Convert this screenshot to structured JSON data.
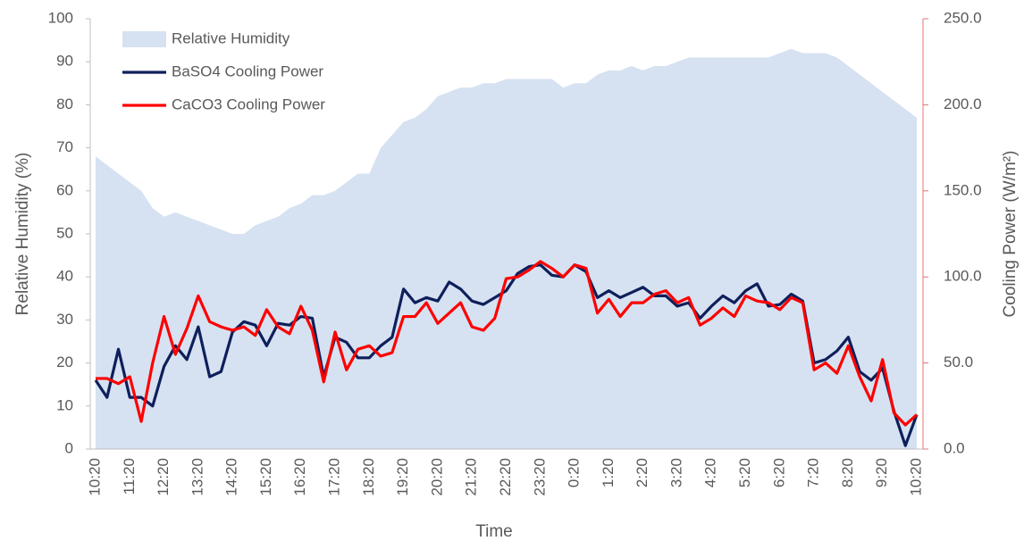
{
  "chart_data": {
    "type": "line",
    "x_label": "Time",
    "y_label": "Relative Humidity (%)",
    "y2_label": "Cooling Power (W/m²)",
    "categories": [
      "10:20",
      null,
      null,
      "11:20",
      null,
      null,
      "12:20",
      null,
      null,
      "13:20",
      null,
      null,
      "14:20",
      null,
      null,
      "15:20",
      null,
      null,
      "16:20",
      null,
      null,
      "17:20",
      null,
      null,
      "18:20",
      null,
      null,
      "19:20",
      null,
      null,
      "20:20",
      null,
      null,
      "21:20",
      null,
      null,
      "22:20",
      null,
      null,
      "23:20",
      null,
      null,
      "0:20",
      null,
      null,
      "1:20",
      null,
      null,
      "2:20",
      null,
      null,
      "3:20",
      null,
      null,
      "4:20",
      null,
      null,
      "5:20",
      null,
      null,
      "6:20",
      null,
      null,
      "7:20",
      null,
      null,
      "8:20",
      null,
      null,
      "9:20",
      null,
      null,
      "10:20"
    ],
    "series": [
      {
        "name": "Relative Humidity",
        "type": "area",
        "axis": "y",
        "color": "#d6e2f1",
        "values": [
          68,
          66,
          64,
          62,
          60,
          56,
          54,
          55,
          54,
          53,
          52,
          51,
          50,
          50,
          52,
          53,
          54,
          56,
          57,
          59,
          59,
          60,
          62,
          64,
          64,
          70,
          73,
          76,
          77,
          79,
          82,
          83,
          84,
          84,
          85,
          85,
          86,
          86,
          86,
          86,
          86,
          84,
          85,
          85,
          87,
          88,
          88,
          89,
          88,
          89,
          89,
          90,
          91,
          91,
          91,
          91,
          91,
          91,
          91,
          91,
          92,
          93,
          92,
          92,
          92,
          91,
          89,
          87,
          85,
          83,
          81,
          79,
          77
        ]
      },
      {
        "name": "BaSO4 Cooling Power",
        "type": "line",
        "axis": "y2",
        "color": "#0e1f5b",
        "values": [
          40,
          30,
          58,
          30,
          30,
          25,
          48,
          60,
          52,
          71,
          42,
          45,
          68,
          74,
          72,
          60,
          73,
          72,
          77,
          76,
          42,
          65,
          62,
          53,
          53,
          60,
          65,
          93,
          85,
          88,
          86,
          97,
          93,
          86,
          84,
          88,
          92,
          102,
          106,
          107,
          101,
          100,
          107,
          103,
          88,
          92,
          88,
          91,
          94,
          89,
          89,
          83,
          85,
          76,
          83,
          89,
          85,
          92,
          96,
          83,
          84,
          90,
          86,
          50,
          52,
          57,
          65,
          45,
          40,
          47,
          22,
          2,
          20
        ]
      },
      {
        "name": "CaCO3 Cooling Power",
        "type": "line",
        "axis": "y2",
        "color": "#ff0000",
        "values": [
          41,
          41,
          38,
          42,
          16,
          50,
          77,
          55,
          70,
          89,
          74,
          71,
          69,
          71,
          66,
          81,
          71,
          67,
          83,
          69,
          39,
          68,
          46,
          58,
          60,
          54,
          56,
          77,
          77,
          85,
          73,
          79,
          85,
          71,
          69,
          76,
          99,
          100,
          104,
          109,
          105,
          100,
          107,
          105,
          79,
          87,
          77,
          85,
          85,
          90,
          92,
          85,
          88,
          72,
          76,
          82,
          77,
          89,
          86,
          85,
          81,
          88,
          85,
          46,
          50,
          44,
          60,
          42,
          28,
          52,
          21,
          14,
          20
        ]
      }
    ],
    "ylim": [
      0,
      100
    ],
    "yticks": [
      0,
      10,
      20,
      30,
      40,
      50,
      60,
      70,
      80,
      90,
      100
    ],
    "y2lim": [
      0,
      250
    ],
    "y2ticks": [
      {
        "value": 0,
        "label": "0.0"
      },
      {
        "value": 50,
        "label": "50.0"
      },
      {
        "value": 100,
        "label": "100.0"
      },
      {
        "value": 150,
        "label": "150.0"
      },
      {
        "value": 200,
        "label": "200.0"
      },
      {
        "value": 250,
        "label": "250.0"
      }
    ],
    "y2_axis_color": "#e87070",
    "legend": "top-left"
  }
}
